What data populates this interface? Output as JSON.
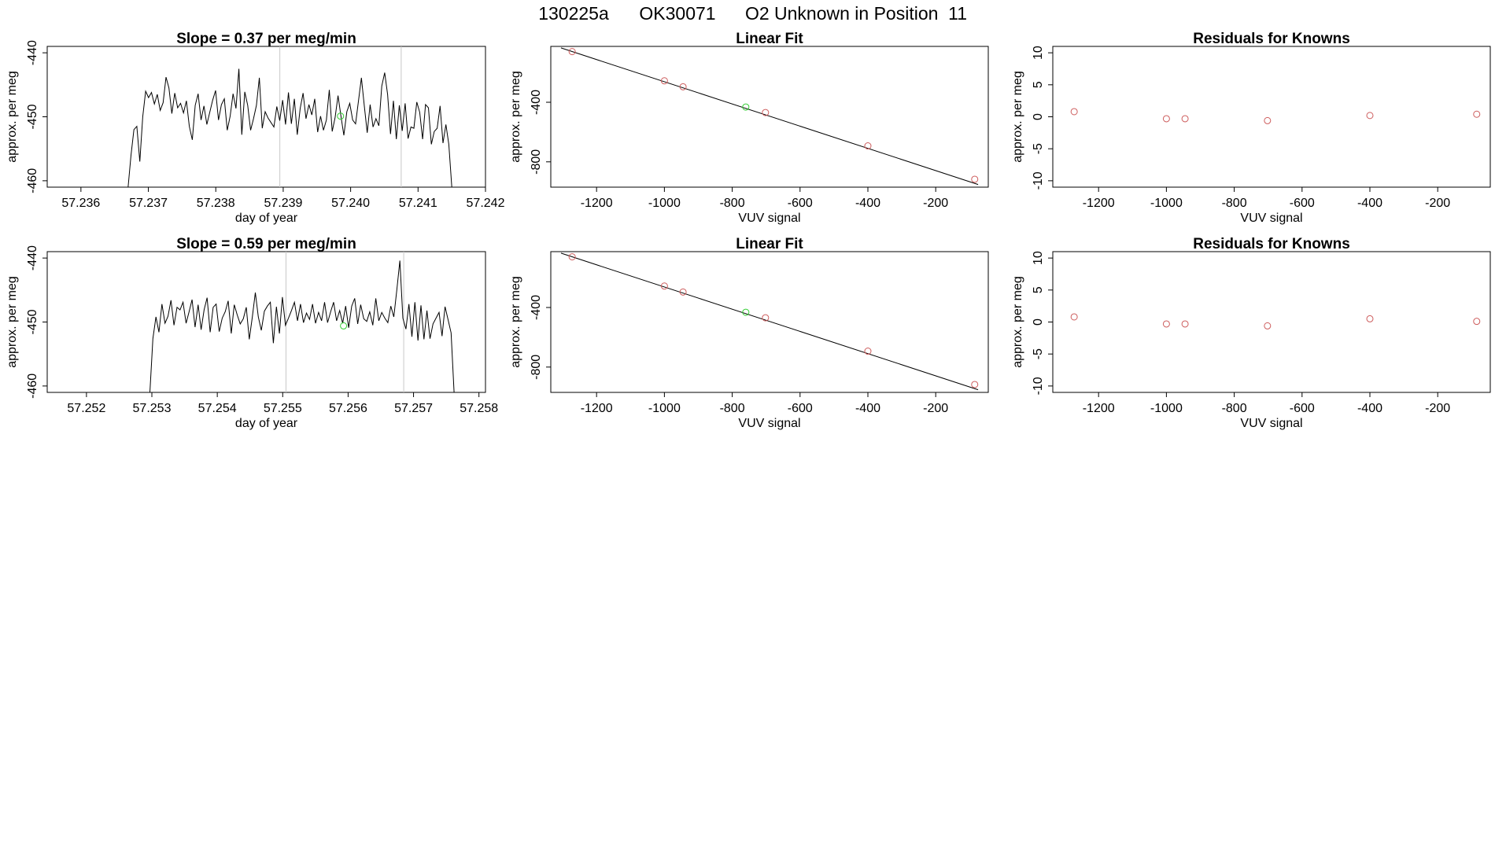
{
  "figure": {
    "title_parts": [
      "130225a",
      "OK30071",
      "O2 Unknown in Position  11"
    ]
  },
  "colors": {
    "known": "#cd5c5c",
    "unknown": "#32cd32",
    "line": "#000000",
    "vline": "#c8c8c8"
  },
  "chart_data": [
    {
      "type": "line",
      "title": "Slope =  0.37  per meg/min",
      "xlabel": "day of year",
      "ylabel": "approx. per meg",
      "xlim": [
        57.2355,
        57.242
      ],
      "ylim": [
        -461,
        -439
      ],
      "xticks": [
        "57.236",
        "57.237",
        "57.238",
        "57.239",
        "57.240",
        "57.241",
        "57.242"
      ],
      "yticks": [
        "-440",
        "-450",
        "-460"
      ],
      "start_x": 57.2367,
      "end_x": 57.2415,
      "vlines": [
        57.23895,
        57.24075
      ],
      "unknown_point": {
        "x": 57.23985,
        "y": -449.9
      },
      "y": [
        -461,
        -456,
        -452,
        -451.5,
        -457,
        -450,
        -446,
        -447,
        -446.2,
        -448,
        -446.5,
        -449,
        -447.8,
        -443.8,
        -445.5,
        -449.5,
        -446.3,
        -448.6,
        -447.9,
        -449.4,
        -447.5,
        -451.5,
        -453.6,
        -448.2,
        -446.4,
        -450.5,
        -448.3,
        -451.2,
        -449.3,
        -447.4,
        -445.9,
        -450.5,
        -448.1,
        -447.2,
        -452.1,
        -449.9,
        -446.4,
        -448.7,
        -442.5,
        -452.8,
        -446.1,
        -448.2,
        -452.1,
        -450.3,
        -448.2,
        -443.9,
        -451.8,
        -449.2,
        -450.2,
        -450.9,
        -451.6,
        -448.4,
        -450.6,
        -447.4,
        -451.2,
        -446.2,
        -451.1,
        -447.2,
        -452.8,
        -448.7,
        -446.3,
        -450.3,
        -448.1,
        -449.7,
        -447.2,
        -452.4,
        -449.9,
        -452.1,
        -450.5,
        -445.8,
        -452.3,
        -450.1,
        -446.7,
        -449.9,
        -452.9,
        -449.2,
        -447.9,
        -450.5,
        -451.1,
        -447.5,
        -443.9,
        -448.3,
        -452.5,
        -448.1,
        -451.6,
        -450.3,
        -451.4,
        -445.2,
        -443.1,
        -446.5,
        -452.7,
        -447.5,
        -453.5,
        -448.2,
        -452.2,
        -447.9,
        -453.4,
        -451.6,
        -451.8,
        -447.7,
        -449.3,
        -453.5,
        -448.1,
        -448.6,
        -454.3,
        -452.3,
        -451.8,
        -448.3,
        -454.1,
        -451.2,
        -454.3,
        -461
      ]
    },
    {
      "type": "scatter",
      "title": "Linear Fit",
      "xlabel": "VUV signal",
      "ylabel": "approx. per meg",
      "xlim": [
        -1335,
        -45
      ],
      "ylim": [
        -970,
        -25
      ],
      "xticks": [
        "-1200",
        "-1000",
        "-800",
        "-600",
        "-400",
        "-200"
      ],
      "yticks": [
        "-400",
        "-800"
      ],
      "fit_line": {
        "x": [
          -1305,
          -75
        ],
        "y": [
          -35,
          -952
        ]
      },
      "known_points": {
        "x": [
          -1272,
          -1000,
          -945,
          -702,
          -400,
          -85
        ],
        "y": [
          -60,
          -256,
          -296,
          -469,
          -693,
          -917
        ]
      },
      "unknown_point": {
        "x": -760,
        "y": -432
      }
    },
    {
      "type": "scatter",
      "title": "Residuals for Knowns",
      "xlabel": "VUV signal",
      "ylabel": "approx. per meg",
      "xlim": [
        -1335,
        -45
      ],
      "ylim": [
        -11,
        11
      ],
      "xticks": [
        "-1200",
        "-1000",
        "-800",
        "-600",
        "-400",
        "-200"
      ],
      "yticks": [
        "-10",
        "-5",
        "0",
        "5",
        "10"
      ],
      "points": {
        "x": [
          -1272,
          -1000,
          -945,
          -702,
          -400,
          -85
        ],
        "y": [
          0.8,
          -0.3,
          -0.3,
          -0.6,
          0.2,
          0.4
        ]
      }
    },
    {
      "type": "line",
      "title": "Slope =  0.59  per meg/min",
      "xlabel": "day of year",
      "ylabel": "approx. per meg",
      "xlim": [
        57.2514,
        57.2581
      ],
      "ylim": [
        -461,
        -439
      ],
      "xticks": [
        "57.252",
        "57.253",
        "57.254",
        "57.255",
        "57.256",
        "57.257",
        "57.258"
      ],
      "yticks": [
        "-440",
        "-450",
        "-460"
      ],
      "start_x": 57.25297,
      "end_x": 57.25762,
      "vlines": [
        57.25505,
        57.25685
      ],
      "unknown_point": {
        "x": 57.25593,
        "y": -450.6
      },
      "y": [
        -461,
        -452.6,
        -449.2,
        -451.6,
        -447.2,
        -450.2,
        -449.1,
        -446.6,
        -450.5,
        -447.7,
        -448.1,
        -446.9,
        -450.2,
        -448.4,
        -446.5,
        -450.8,
        -447.3,
        -451.2,
        -448.1,
        -446.2,
        -451.6,
        -447.7,
        -447.2,
        -451.5,
        -449.4,
        -448.4,
        -446.7,
        -451.8,
        -447.3,
        -448.9,
        -450.3,
        -449.5,
        -447.7,
        -452.7,
        -449.2,
        -445.4,
        -449.2,
        -451.3,
        -448.3,
        -447.5,
        -446.9,
        -453.3,
        -447.6,
        -451.8,
        -446.1,
        -450.5,
        -449.4,
        -448.2,
        -446.9,
        -449.8,
        -447.2,
        -450.1,
        -448.6,
        -449.6,
        -447.2,
        -450.2,
        -448.5,
        -449.8,
        -446.9,
        -450.1,
        -448.4,
        -446.9,
        -449.8,
        -448.2,
        -450.2,
        -447.5,
        -450.9,
        -447.5,
        -446.3,
        -450.3,
        -447.3,
        -449.5,
        -449.9,
        -448.4,
        -450.5,
        -446.3,
        -449.8,
        -448.5,
        -449.4,
        -450.1,
        -447.5,
        -449.2,
        -444.9,
        -440.4,
        -449.4,
        -451.1,
        -447.2,
        -452.3,
        -446.9,
        -452.9,
        -447.4,
        -452.7,
        -448.2,
        -452.6,
        -450.3,
        -449.4,
        -448.5,
        -452.2,
        -447.6,
        -449.6,
        -451.7,
        -461
      ]
    },
    {
      "type": "scatter",
      "title": "Linear Fit",
      "xlabel": "VUV signal",
      "ylabel": "approx. per meg",
      "xlim": [
        -1335,
        -45
      ],
      "ylim": [
        -970,
        -25
      ],
      "xticks": [
        "-1200",
        "-1000",
        "-800",
        "-600",
        "-400",
        "-200"
      ],
      "yticks": [
        "-400",
        "-800"
      ],
      "fit_line": {
        "x": [
          -1305,
          -75
        ],
        "y": [
          -35,
          -952
        ]
      },
      "known_points": {
        "x": [
          -1272,
          -1000,
          -945,
          -702,
          -400,
          -85
        ],
        "y": [
          -60,
          -256,
          -296,
          -469,
          -693,
          -917
        ]
      },
      "unknown_point": {
        "x": -760,
        "y": -432
      }
    },
    {
      "type": "scatter",
      "title": "Residuals for Knowns",
      "xlabel": "VUV signal",
      "ylabel": "approx. per meg",
      "xlim": [
        -1335,
        -45
      ],
      "ylim": [
        -11,
        11
      ],
      "xticks": [
        "-1200",
        "-1000",
        "-800",
        "-600",
        "-400",
        "-200"
      ],
      "yticks": [
        "-10",
        "-5",
        "0",
        "5",
        "10"
      ],
      "points": {
        "x": [
          -1272,
          -1000,
          -945,
          -702,
          -400,
          -85
        ],
        "y": [
          0.8,
          -0.3,
          -0.3,
          -0.6,
          0.5,
          0.1
        ]
      }
    }
  ]
}
